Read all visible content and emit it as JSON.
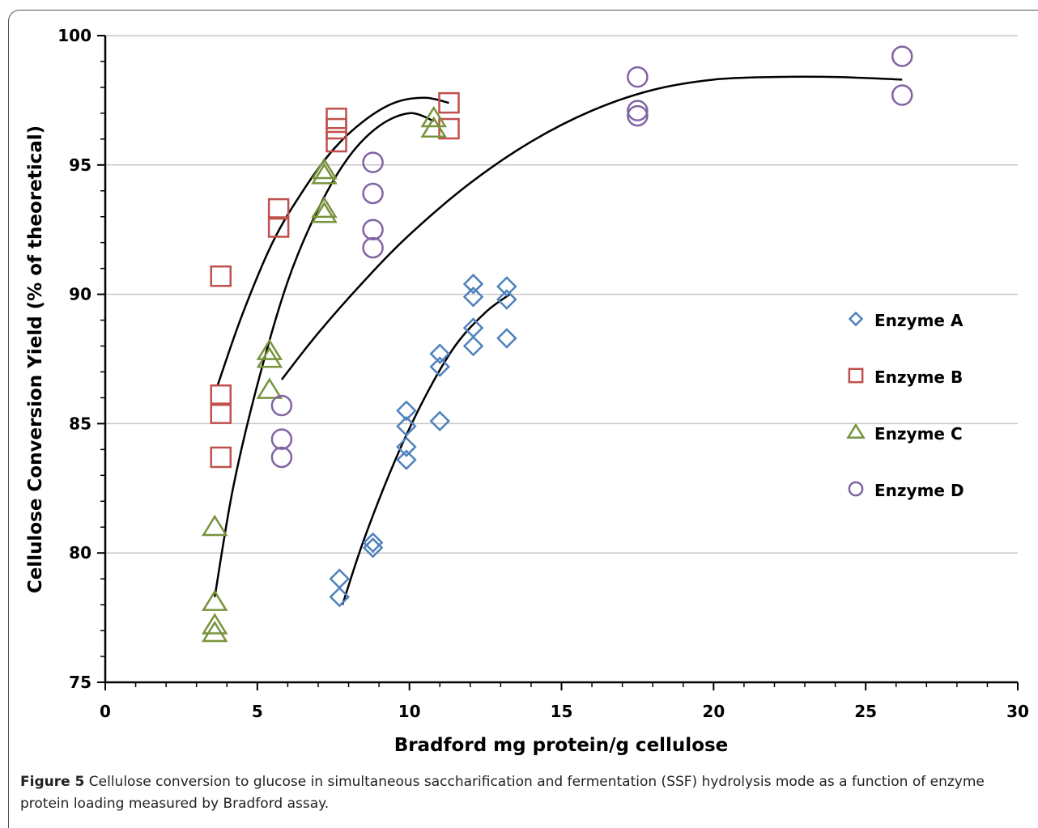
{
  "chart_data": {
    "type": "scatter",
    "xlabel": "Bradford  mg protein/g cellulose",
    "ylabel": "Cellulose Conversion Yield (% of theoretical)",
    "xlim": [
      0,
      30
    ],
    "ylim": [
      75,
      100
    ],
    "x_ticks": [
      "0",
      "5",
      "10",
      "15",
      "20",
      "25",
      "30"
    ],
    "y_ticks": [
      "75",
      "80",
      "85",
      "90",
      "95",
      "100"
    ],
    "grid": "horizontal",
    "legend_position": "right",
    "series": [
      {
        "name": "Enzyme A",
        "marker": "diamond",
        "color": "#4F81BD",
        "points": [
          [
            7.7,
            78.3
          ],
          [
            7.7,
            79.0
          ],
          [
            8.8,
            80.2
          ],
          [
            8.8,
            80.4
          ],
          [
            9.9,
            83.6
          ],
          [
            9.9,
            84.1
          ],
          [
            9.9,
            84.9
          ],
          [
            9.9,
            85.5
          ],
          [
            11.0,
            85.1
          ],
          [
            11.0,
            87.2
          ],
          [
            11.0,
            87.7
          ],
          [
            12.1,
            88.0
          ],
          [
            12.1,
            88.7
          ],
          [
            12.1,
            89.9
          ],
          [
            12.1,
            90.4
          ],
          [
            13.2,
            88.3
          ],
          [
            13.2,
            89.8
          ],
          [
            13.2,
            90.3
          ]
        ],
        "fit": [
          [
            7.8,
            78.0
          ],
          [
            8.5,
            80.5
          ],
          [
            9.5,
            83.5
          ],
          [
            10.5,
            86.0
          ],
          [
            11.5,
            88.0
          ],
          [
            12.5,
            89.3
          ],
          [
            13.3,
            90.0
          ]
        ]
      },
      {
        "name": "Enzyme B",
        "marker": "square",
        "color": "#C0504D",
        "points": [
          [
            3.8,
            90.7
          ],
          [
            3.8,
            86.1
          ],
          [
            3.8,
            85.4
          ],
          [
            3.8,
            83.7
          ],
          [
            5.7,
            93.3
          ],
          [
            5.7,
            92.6
          ],
          [
            7.6,
            96.8
          ],
          [
            7.6,
            96.4
          ],
          [
            7.6,
            95.9
          ],
          [
            11.3,
            97.4
          ],
          [
            11.3,
            96.4
          ]
        ],
        "fit": [
          [
            3.7,
            86.5
          ],
          [
            4.5,
            89.2
          ],
          [
            5.5,
            92.0
          ],
          [
            6.5,
            94.0
          ],
          [
            7.5,
            95.6
          ],
          [
            8.5,
            96.7
          ],
          [
            9.5,
            97.4
          ],
          [
            10.5,
            97.6
          ],
          [
            11.3,
            97.4
          ]
        ]
      },
      {
        "name": "Enzyme C",
        "marker": "triangle",
        "color": "#77933C",
        "points": [
          [
            3.6,
            81.0
          ],
          [
            3.6,
            78.1
          ],
          [
            3.6,
            77.2
          ],
          [
            3.6,
            76.9
          ],
          [
            5.4,
            87.8
          ],
          [
            5.4,
            87.5
          ],
          [
            5.4,
            86.3
          ],
          [
            7.2,
            94.8
          ],
          [
            7.2,
            94.6
          ],
          [
            7.2,
            93.3
          ],
          [
            7.2,
            93.1
          ],
          [
            10.8,
            96.8
          ],
          [
            10.8,
            96.4
          ]
        ],
        "fit": [
          [
            3.6,
            78.3
          ],
          [
            4.2,
            82.5
          ],
          [
            5.0,
            86.5
          ],
          [
            6.0,
            90.5
          ],
          [
            7.0,
            93.3
          ],
          [
            8.0,
            95.3
          ],
          [
            9.0,
            96.5
          ],
          [
            10.0,
            97.0
          ],
          [
            10.8,
            96.7
          ]
        ]
      },
      {
        "name": "Enzyme D",
        "marker": "circle",
        "color": "#8064A2",
        "points": [
          [
            5.8,
            85.7
          ],
          [
            5.8,
            84.4
          ],
          [
            5.8,
            83.7
          ],
          [
            8.8,
            95.1
          ],
          [
            8.8,
            93.9
          ],
          [
            8.8,
            92.5
          ],
          [
            8.8,
            91.8
          ],
          [
            17.5,
            98.4
          ],
          [
            17.5,
            97.1
          ],
          [
            17.5,
            96.9
          ],
          [
            26.2,
            99.2
          ],
          [
            26.2,
            97.7
          ]
        ],
        "fit": [
          [
            5.8,
            86.7
          ],
          [
            7.0,
            88.5
          ],
          [
            8.5,
            90.5
          ],
          [
            10.0,
            92.3
          ],
          [
            12.0,
            94.3
          ],
          [
            14.0,
            95.9
          ],
          [
            16.0,
            97.1
          ],
          [
            18.0,
            97.9
          ],
          [
            20.0,
            98.3
          ],
          [
            22.0,
            98.4
          ],
          [
            24.0,
            98.4
          ],
          [
            26.2,
            98.3
          ]
        ]
      }
    ]
  },
  "caption": {
    "label": "Figure 5",
    "text": " Cellulose conversion to glucose in simultaneous saccharification and fermentation (SSF) hydrolysis mode as a function of enzyme protein loading measured by Bradford assay."
  }
}
